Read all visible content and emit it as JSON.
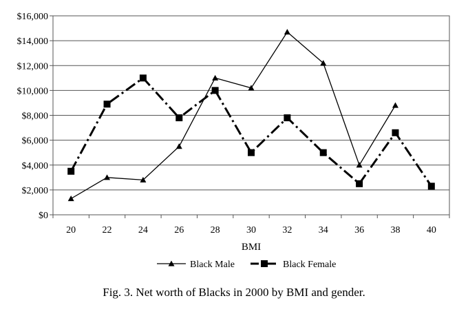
{
  "chart_data": {
    "type": "line",
    "title": "",
    "xlabel": "BMI",
    "ylabel": "",
    "x": [
      20,
      22,
      24,
      26,
      28,
      30,
      32,
      34,
      36,
      38,
      40
    ],
    "x_tick_labels": [
      "20",
      "22",
      "24",
      "26",
      "28",
      "30",
      "32",
      "34",
      "36",
      "38",
      "40"
    ],
    "ylim": [
      0,
      16000
    ],
    "y_ticks": [
      0,
      2000,
      4000,
      6000,
      8000,
      10000,
      12000,
      14000,
      16000
    ],
    "y_tick_labels": [
      "$0",
      "$2,000",
      "$4,000",
      "$6,000",
      "$8,000",
      "$10,000",
      "$12,000",
      "$14,000",
      "$16,000"
    ],
    "grid": true,
    "legend_position": "bottom-center",
    "series": [
      {
        "name": "Black Male",
        "marker": "triangle",
        "line_style": "solid",
        "color": "#000000",
        "values": [
          1300,
          3000,
          2800,
          5500,
          11000,
          10200,
          14700,
          12200,
          4000,
          8800,
          null
        ]
      },
      {
        "name": "Black Female",
        "marker": "square",
        "line_style": "dash-dot",
        "color": "#000000",
        "values": [
          3500,
          8900,
          11000,
          7800,
          10000,
          5000,
          7800,
          5000,
          2500,
          6600,
          2300
        ]
      }
    ]
  },
  "caption": "Fig. 3.  Net worth of Blacks in 2000 by BMI and gender."
}
